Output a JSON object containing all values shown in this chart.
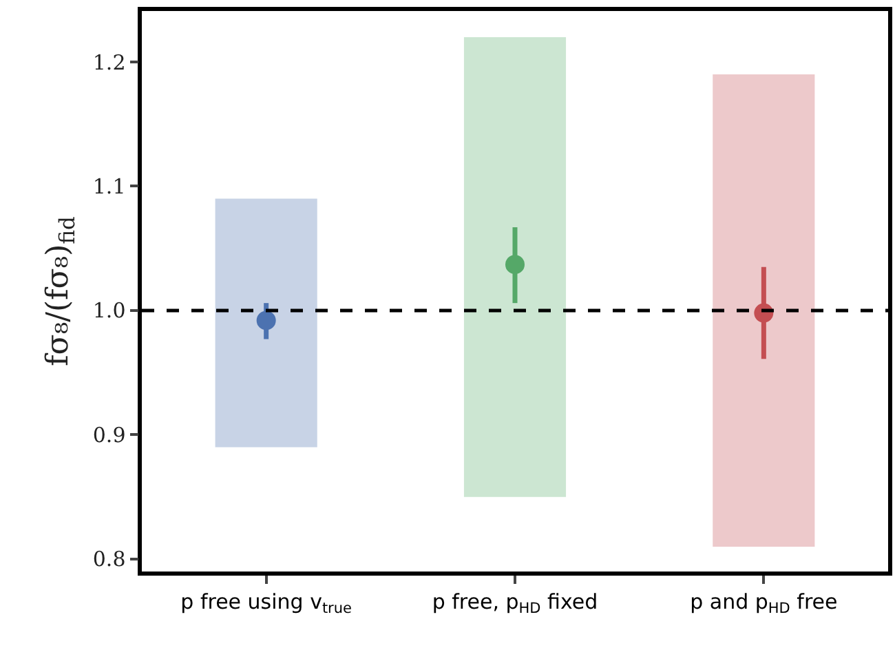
{
  "chart_data": {
    "type": "bar",
    "ylabel": "fσ₈/(fσ₈)$_{fid}$",
    "categories": [
      "p free using v$_{true}$",
      "p free, p$_{HD}$ fixed",
      "p and p$_{HD}$ free"
    ],
    "series": [
      {
        "type": "bar",
        "colors": [
          "#c8d3e6",
          "#cce6d2",
          "#edc9cb"
        ],
        "base": [
          0.89,
          0.85,
          0.81
        ],
        "values": [
          0.2,
          0.37,
          0.38
        ]
      },
      {
        "type": "scatter",
        "x": [
          "p free using v$_{true}$",
          "p free, p$_{HD}$ fixed",
          "p and p$_{HD}$ free"
        ],
        "colors": [
          "#4c72b0",
          "#55a868",
          "#c44e52"
        ],
        "values": [
          0.992,
          1.037,
          0.998
        ],
        "errors": [
          [
            0.977,
            1.006
          ],
          [
            1.006,
            1.067
          ],
          [
            0.961,
            1.035
          ]
        ]
      }
    ],
    "ylim": [
      0.79,
      1.241
    ],
    "yticks": [
      0.8,
      0.9,
      {
        "value": 1,
        "label": "1.0"
      },
      1.1,
      1.2
    ],
    "ref_lines": [
      {
        "axis": "y",
        "value": 1,
        "color": "#000000",
        "line_style": "dashed"
      }
    ],
    "grid": false,
    "marker": "circle"
  }
}
